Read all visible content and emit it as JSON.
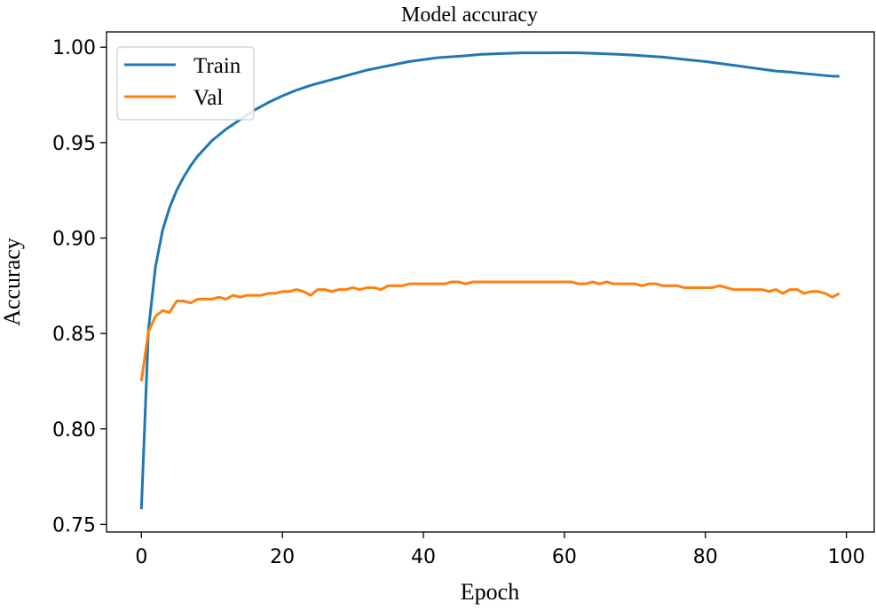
{
  "chart_data": {
    "type": "line",
    "title": "Model accuracy",
    "xlabel": "Epoch",
    "ylabel": "Accuracy",
    "xlim": [
      -4.95,
      103.95
    ],
    "ylim": [
      0.746,
      1.008
    ],
    "xticks": [
      0,
      20,
      40,
      60,
      80,
      100
    ],
    "xtick_labels": [
      "0",
      "20",
      "40",
      "60",
      "80",
      "100"
    ],
    "yticks": [
      0.75,
      0.8,
      0.85,
      0.9,
      0.95,
      1.0
    ],
    "ytick_labels": [
      "0.75",
      "0.80",
      "0.85",
      "0.90",
      "0.95",
      "1.00"
    ],
    "grid": false,
    "legend_position": "upper-left",
    "series": [
      {
        "name": "Train",
        "color": "#1f77b4",
        "x": [
          0,
          1,
          2,
          3,
          4,
          5,
          6,
          7,
          8,
          9,
          10,
          12,
          14,
          16,
          18,
          20,
          22,
          24,
          26,
          28,
          30,
          32,
          34,
          36,
          38,
          40,
          42,
          44,
          46,
          48,
          50,
          52,
          54,
          56,
          58,
          60,
          62,
          64,
          66,
          68,
          70,
          72,
          74,
          76,
          78,
          80,
          82,
          84,
          86,
          88,
          90,
          92,
          94,
          96,
          98,
          99
        ],
        "values": [
          0.758,
          0.852,
          0.885,
          0.904,
          0.916,
          0.925,
          0.932,
          0.938,
          0.943,
          0.947,
          0.951,
          0.957,
          0.962,
          0.967,
          0.971,
          0.9745,
          0.9775,
          0.98,
          0.982,
          0.984,
          0.986,
          0.988,
          0.9895,
          0.991,
          0.9925,
          0.9935,
          0.9945,
          0.995,
          0.9955,
          0.9962,
          0.9965,
          0.9968,
          0.997,
          0.997,
          0.997,
          0.9971,
          0.997,
          0.9968,
          0.9965,
          0.9962,
          0.9958,
          0.9953,
          0.9948,
          0.994,
          0.9932,
          0.9925,
          0.9915,
          0.9905,
          0.9895,
          0.9885,
          0.9875,
          0.987,
          0.9862,
          0.9855,
          0.9848,
          0.9848
        ]
      },
      {
        "name": "Val",
        "color": "#ff7f0e",
        "x": [
          0,
          1,
          2,
          3,
          4,
          5,
          6,
          7,
          8,
          9,
          10,
          11,
          12,
          13,
          14,
          15,
          16,
          17,
          18,
          19,
          20,
          21,
          22,
          23,
          24,
          25,
          26,
          27,
          28,
          29,
          30,
          31,
          32,
          33,
          34,
          35,
          36,
          37,
          38,
          39,
          40,
          41,
          42,
          43,
          44,
          45,
          46,
          47,
          48,
          49,
          50,
          51,
          52,
          53,
          54,
          55,
          56,
          57,
          58,
          59,
          60,
          61,
          62,
          63,
          64,
          65,
          66,
          67,
          68,
          69,
          70,
          71,
          72,
          73,
          74,
          75,
          76,
          77,
          78,
          79,
          80,
          81,
          82,
          83,
          84,
          85,
          86,
          87,
          88,
          89,
          90,
          91,
          92,
          93,
          94,
          95,
          96,
          97,
          98,
          99
        ],
        "values": [
          0.825,
          0.851,
          0.859,
          0.862,
          0.861,
          0.867,
          0.867,
          0.866,
          0.868,
          0.868,
          0.868,
          0.869,
          0.868,
          0.87,
          0.869,
          0.87,
          0.87,
          0.87,
          0.871,
          0.871,
          0.872,
          0.872,
          0.873,
          0.872,
          0.87,
          0.873,
          0.873,
          0.872,
          0.873,
          0.873,
          0.874,
          0.873,
          0.874,
          0.874,
          0.873,
          0.875,
          0.875,
          0.875,
          0.876,
          0.876,
          0.876,
          0.876,
          0.876,
          0.876,
          0.877,
          0.877,
          0.876,
          0.877,
          0.877,
          0.877,
          0.877,
          0.877,
          0.877,
          0.877,
          0.877,
          0.877,
          0.877,
          0.877,
          0.877,
          0.877,
          0.877,
          0.877,
          0.876,
          0.876,
          0.877,
          0.876,
          0.877,
          0.876,
          0.876,
          0.876,
          0.876,
          0.875,
          0.876,
          0.876,
          0.875,
          0.875,
          0.875,
          0.874,
          0.874,
          0.874,
          0.874,
          0.874,
          0.875,
          0.874,
          0.873,
          0.873,
          0.873,
          0.873,
          0.873,
          0.872,
          0.873,
          0.871,
          0.873,
          0.873,
          0.871,
          0.872,
          0.872,
          0.871,
          0.869,
          0.871
        ]
      }
    ]
  }
}
